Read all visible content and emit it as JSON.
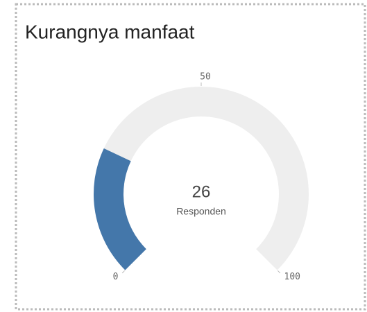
{
  "chart_data": {
    "type": "gauge",
    "title": "Kurangnya manfaat",
    "value": 26,
    "measure_label": "Responden",
    "color": "#4477aa",
    "track_color": "#eeeeee",
    "ylim": [
      0,
      100
    ],
    "yticks": [
      0,
      50,
      100
    ]
  }
}
